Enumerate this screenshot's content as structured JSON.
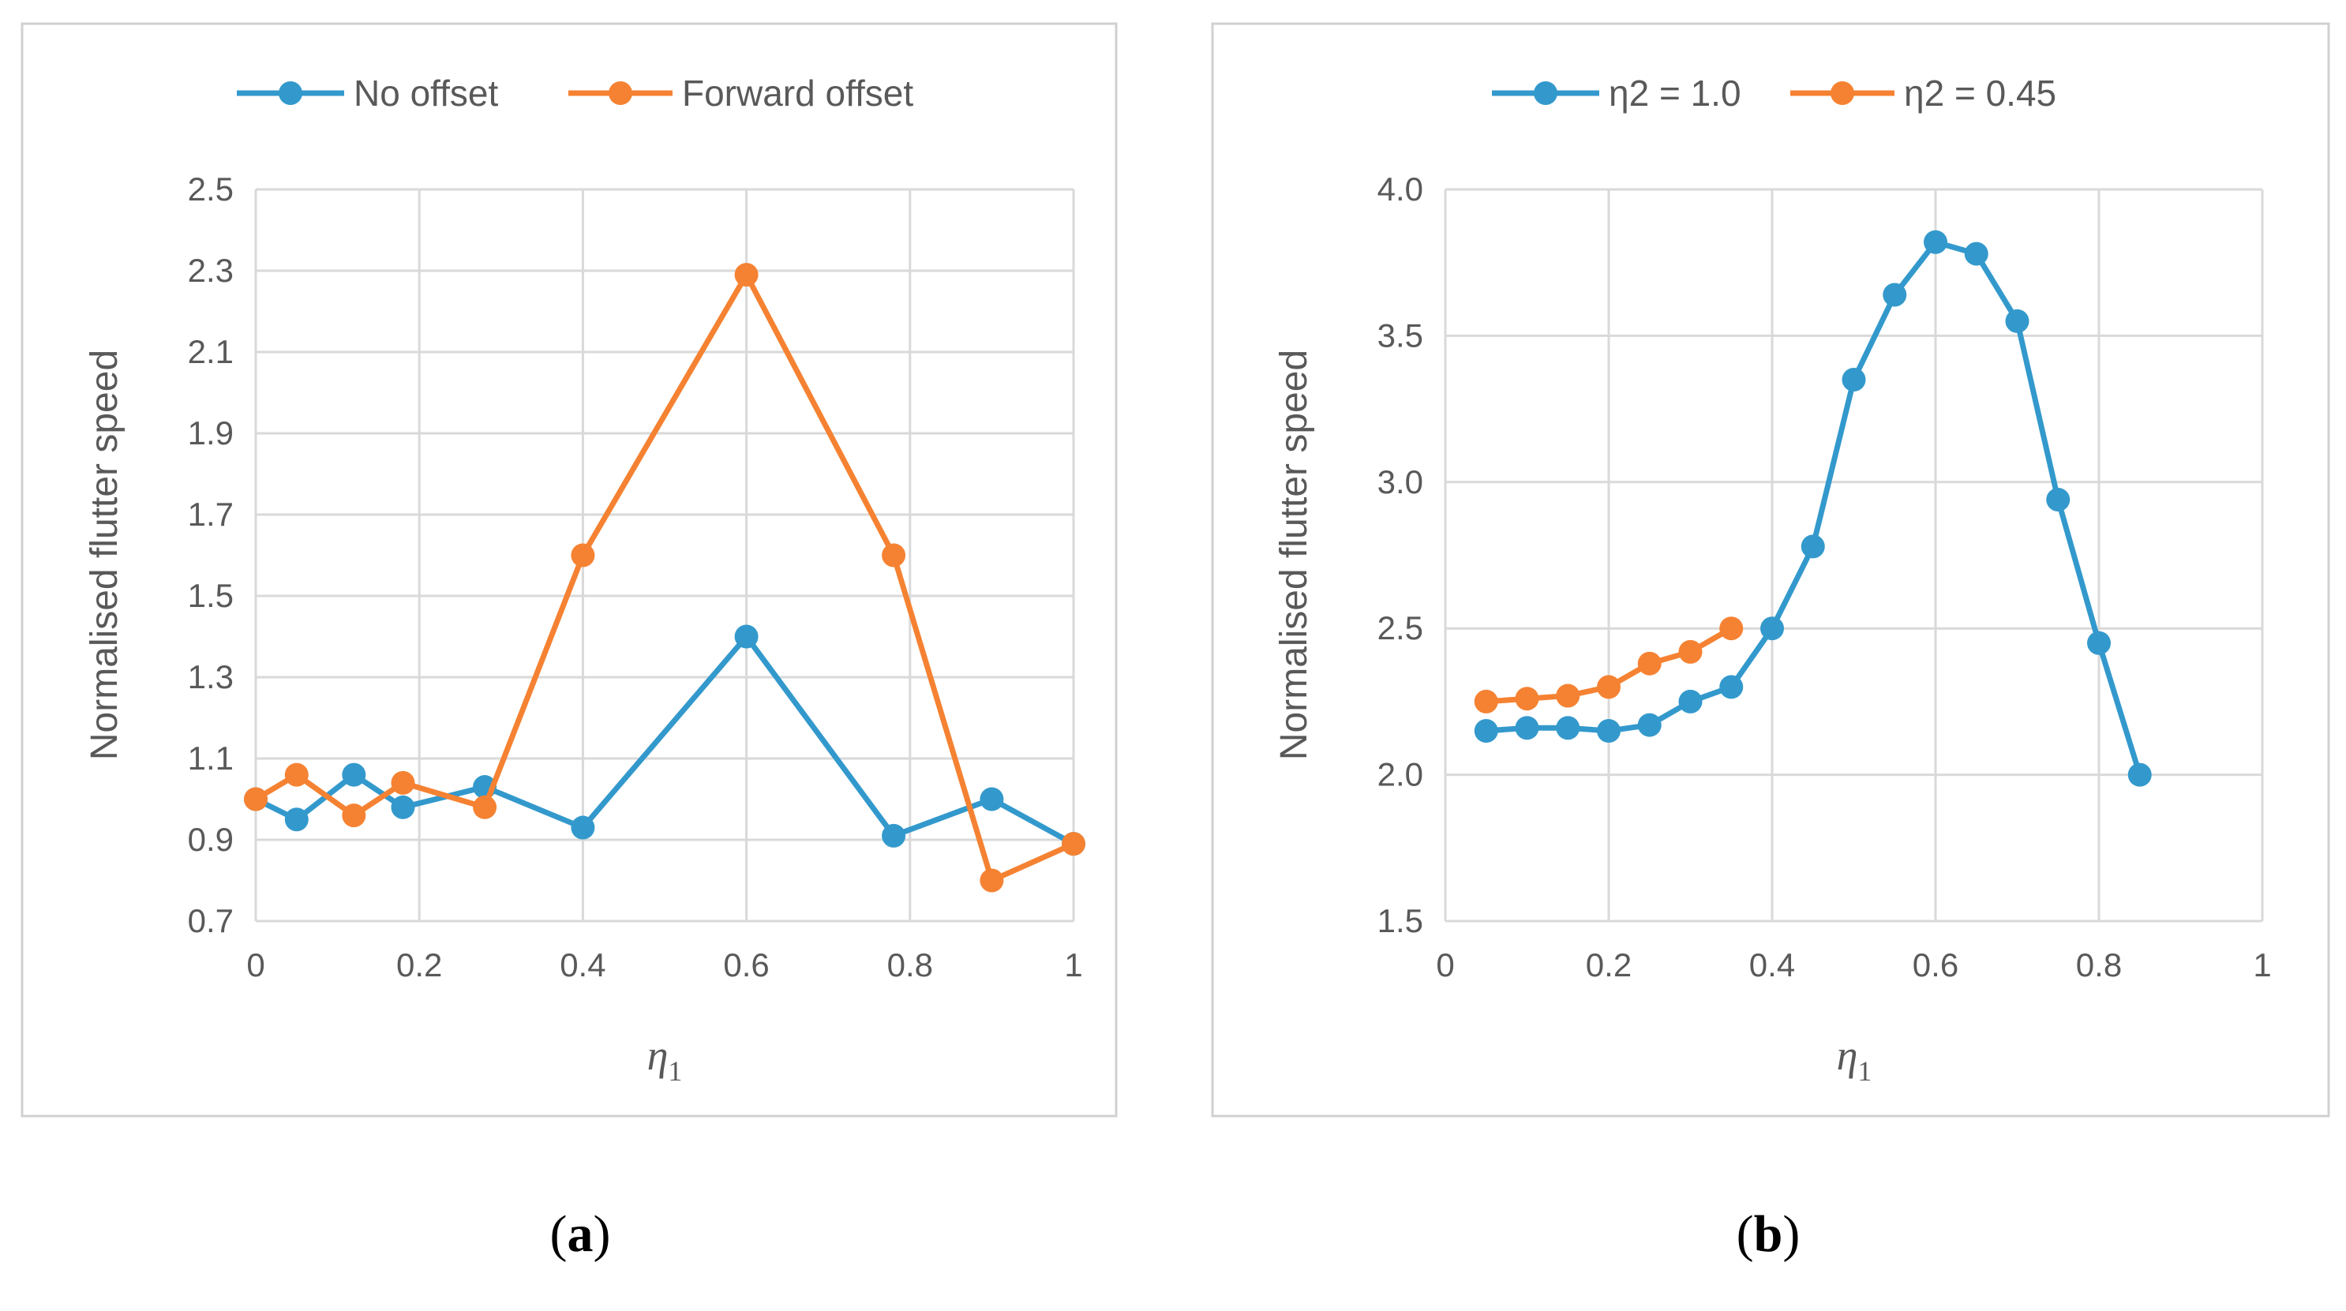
{
  "colors": {
    "series1": "#3399CC",
    "series2": "#F58232",
    "grid": "#D9D9D9",
    "frame": "#D0D0D0",
    "text": "#595959"
  },
  "chart_data": [
    {
      "type": "line",
      "ylabel": "Normalised flutter speed",
      "xlabel_symbol": "η",
      "xlabel_subscript": "1",
      "xlim": [
        0,
        1
      ],
      "ylim": [
        0.7,
        2.5
      ],
      "x_ticks": [
        0,
        0.2,
        0.4,
        0.6,
        0.8,
        1
      ],
      "x_tick_labels": [
        "0",
        "0.2",
        "0.4",
        "0.6",
        "0.8",
        "1"
      ],
      "y_ticks": [
        0.7,
        0.9,
        1.1,
        1.3,
        1.5,
        1.7,
        1.9,
        2.1,
        2.3,
        2.5
      ],
      "y_tick_labels": [
        "0.7",
        "0.9",
        "1.1",
        "1.3",
        "1.5",
        "1.7",
        "1.9",
        "2.1",
        "2.3",
        "2.5"
      ],
      "grid": true,
      "legend_position": "top",
      "caption_open": "(",
      "caption_letter": "a",
      "caption_close": ")",
      "series": [
        {
          "name": "No offset",
          "color": "#3399CC",
          "x": [
            0,
            0.05,
            0.12,
            0.18,
            0.28,
            0.4,
            0.6,
            0.78,
            0.9,
            1.0
          ],
          "values": [
            1.0,
            0.95,
            1.06,
            0.98,
            1.03,
            0.93,
            1.4,
            0.91,
            1.0,
            0.89
          ]
        },
        {
          "name": "Forward offset",
          "color": "#F58232",
          "x": [
            0,
            0.05,
            0.12,
            0.18,
            0.28,
            0.4,
            0.6,
            0.78,
            0.9,
            1.0
          ],
          "values": [
            1.0,
            1.06,
            0.96,
            1.04,
            0.98,
            1.6,
            2.29,
            1.6,
            0.8,
            0.89
          ]
        }
      ]
    },
    {
      "type": "line",
      "ylabel": "Normalised flutter speed",
      "xlabel_symbol": "η",
      "xlabel_subscript": "1",
      "xlim": [
        0,
        1
      ],
      "ylim": [
        1.5,
        4.0
      ],
      "x_ticks": [
        0,
        0.2,
        0.4,
        0.6,
        0.8,
        1
      ],
      "x_tick_labels": [
        "0",
        "0.2",
        "0.4",
        "0.6",
        "0.8",
        "1"
      ],
      "y_ticks": [
        1.5,
        2.0,
        2.5,
        3.0,
        3.5,
        4.0
      ],
      "y_tick_labels": [
        "1.5",
        "2.0",
        "2.5",
        "3.0",
        "3.5",
        "4.0"
      ],
      "grid": true,
      "legend_position": "top",
      "caption_open": "(",
      "caption_letter": "b",
      "caption_close": ")",
      "series": [
        {
          "name": "η2 = 1.0",
          "color": "#3399CC",
          "x": [
            0.05,
            0.1,
            0.15,
            0.2,
            0.25,
            0.3,
            0.35,
            0.4,
            0.45,
            0.5,
            0.55,
            0.6,
            0.65,
            0.7,
            0.75,
            0.8,
            0.85
          ],
          "values": [
            2.15,
            2.16,
            2.16,
            2.15,
            2.17,
            2.25,
            2.3,
            2.5,
            2.78,
            3.35,
            3.64,
            3.82,
            3.78,
            3.55,
            2.94,
            2.45,
            2.0
          ]
        },
        {
          "name": "η2 = 0.45",
          "color": "#F58232",
          "x": [
            0.05,
            0.1,
            0.15,
            0.2,
            0.25,
            0.3,
            0.35
          ],
          "values": [
            2.25,
            2.26,
            2.27,
            2.3,
            2.38,
            2.42,
            2.5
          ]
        }
      ]
    }
  ]
}
